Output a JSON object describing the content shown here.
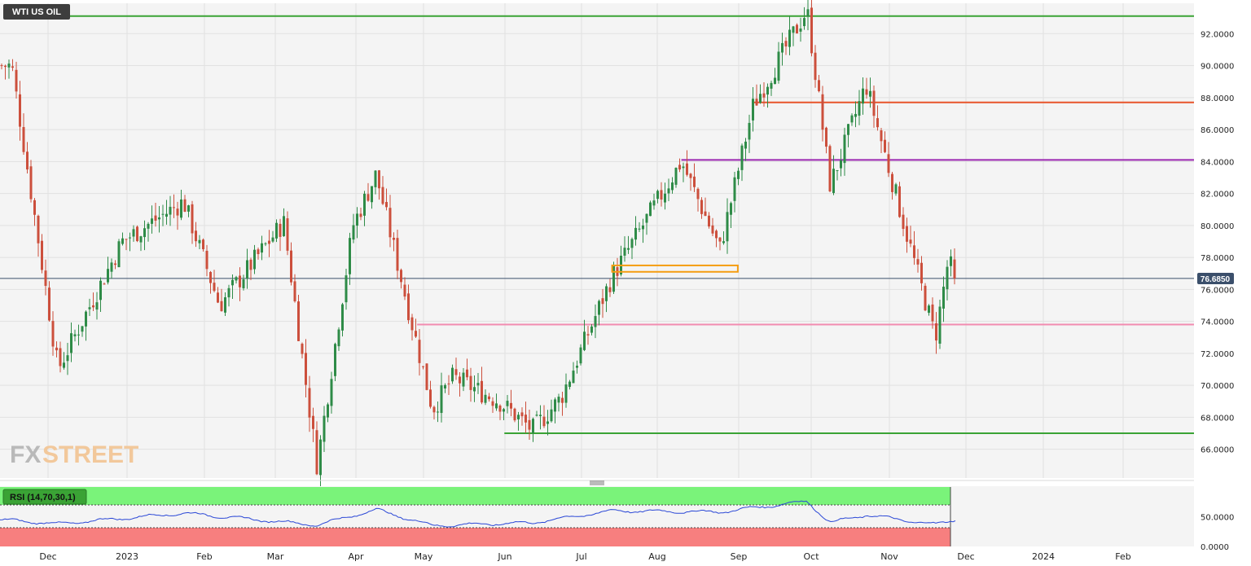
{
  "symbol": "WTI US OIL",
  "price_badge": "76.6850",
  "logo": {
    "part1": "FX",
    "part2": "STREET"
  },
  "rsi_label": "RSI (14,70,30,1)",
  "colors": {
    "bull": "#2e8b47",
    "bear": "#cc4f3c",
    "green_level": "#3aa335",
    "orange_level": "#e8542a",
    "purple_level": "#9b27b0",
    "pink_level": "#f28bb0",
    "box": "#f59d12",
    "price_line": "#3b4f6b",
    "rsi_line": "#2a47d6",
    "rsi_over": "#7af37a",
    "rsi_under": "#f77f7f"
  },
  "chart_data": {
    "type": "candlestick",
    "title": "WTI US OIL",
    "yticks": [
      "92.0000",
      "90.0000",
      "88.0000",
      "86.0000",
      "84.0000",
      "82.0000",
      "80.0000",
      "78.0000",
      "76.0000",
      "74.0000",
      "72.0000",
      "70.0000",
      "68.0000",
      "66.0000"
    ],
    "ylim": [
      64.2,
      93.9
    ],
    "months": [
      "Dec",
      "2023",
      "Feb",
      "Mar",
      "Apr",
      "May",
      "Jun",
      "Jul",
      "Aug",
      "Sep",
      "Oct",
      "Nov",
      "Dec",
      "2024",
      "Feb"
    ],
    "last_price": 76.685,
    "levels": [
      {
        "name": "resistance-top",
        "value": 93.1,
        "from": "2022-11-21",
        "color": "green_level"
      },
      {
        "name": "resistance-87",
        "value": 87.7,
        "from": "2023-09-06",
        "color": "orange_level"
      },
      {
        "name": "resistance-84",
        "value": 84.1,
        "from": "2023-08-09",
        "color": "purple_level"
      },
      {
        "name": "support-73",
        "value": 73.8,
        "from": "2023-04-28",
        "color": "pink_level"
      },
      {
        "name": "support-67",
        "value": 67.0,
        "from": "2023-06-01",
        "color": "green_level"
      }
    ],
    "zone_box": {
      "from": "2023-07-13",
      "to": "2023-08-31",
      "low": 77.1,
      "high": 77.5
    },
    "key_points": [
      {
        "date": "2022-11-21",
        "price": 90.0
      },
      {
        "date": "2022-12-09",
        "price": 71.0
      },
      {
        "date": "2023-01-03",
        "price": 79.0
      },
      {
        "date": "2023-01-27",
        "price": 81.5
      },
      {
        "date": "2023-02-10",
        "price": 75.0
      },
      {
        "date": "2023-03-07",
        "price": 80.2
      },
      {
        "date": "2023-03-20",
        "price": 65.0
      },
      {
        "date": "2023-04-03",
        "price": 80.0
      },
      {
        "date": "2023-04-12",
        "price": 83.2
      },
      {
        "date": "2023-05-04",
        "price": 68.5
      },
      {
        "date": "2023-05-12",
        "price": 70.5
      },
      {
        "date": "2023-05-30",
        "price": 69.0
      },
      {
        "date": "2023-06-12",
        "price": 67.2
      },
      {
        "date": "2023-06-23",
        "price": 69.2
      },
      {
        "date": "2023-07-13",
        "price": 76.8
      },
      {
        "date": "2023-08-09",
        "price": 84.0
      },
      {
        "date": "2023-08-24",
        "price": 78.5
      },
      {
        "date": "2023-09-06",
        "price": 87.5
      },
      {
        "date": "2023-09-27",
        "price": 93.5
      },
      {
        "date": "2023-10-06",
        "price": 82.5
      },
      {
        "date": "2023-10-20",
        "price": 88.8
      },
      {
        "date": "2023-11-03",
        "price": 80.5
      },
      {
        "date": "2023-11-16",
        "price": 73.0
      },
      {
        "date": "2023-11-21",
        "price": 77.8
      },
      {
        "date": "2023-11-24",
        "price": 76.685
      }
    ],
    "rsi": {
      "yticks": [
        "50.0000",
        "0.0000"
      ],
      "overbought": 70,
      "oversold": 30,
      "key_points": [
        {
          "date": "2022-11-21",
          "value": 44
        },
        {
          "date": "2022-12-09",
          "value": 38
        },
        {
          "date": "2023-01-27",
          "value": 56
        },
        {
          "date": "2023-03-20",
          "value": 36
        },
        {
          "date": "2023-04-12",
          "value": 62
        },
        {
          "date": "2023-05-04",
          "value": 35
        },
        {
          "date": "2023-06-12",
          "value": 40
        },
        {
          "date": "2023-07-13",
          "value": 60
        },
        {
          "date": "2023-08-24",
          "value": 58
        },
        {
          "date": "2023-09-27",
          "value": 76
        },
        {
          "date": "2023-10-06",
          "value": 40
        },
        {
          "date": "2023-10-20",
          "value": 53
        },
        {
          "date": "2023-11-16",
          "value": 37
        },
        {
          "date": "2023-11-24",
          "value": 46
        }
      ]
    }
  }
}
